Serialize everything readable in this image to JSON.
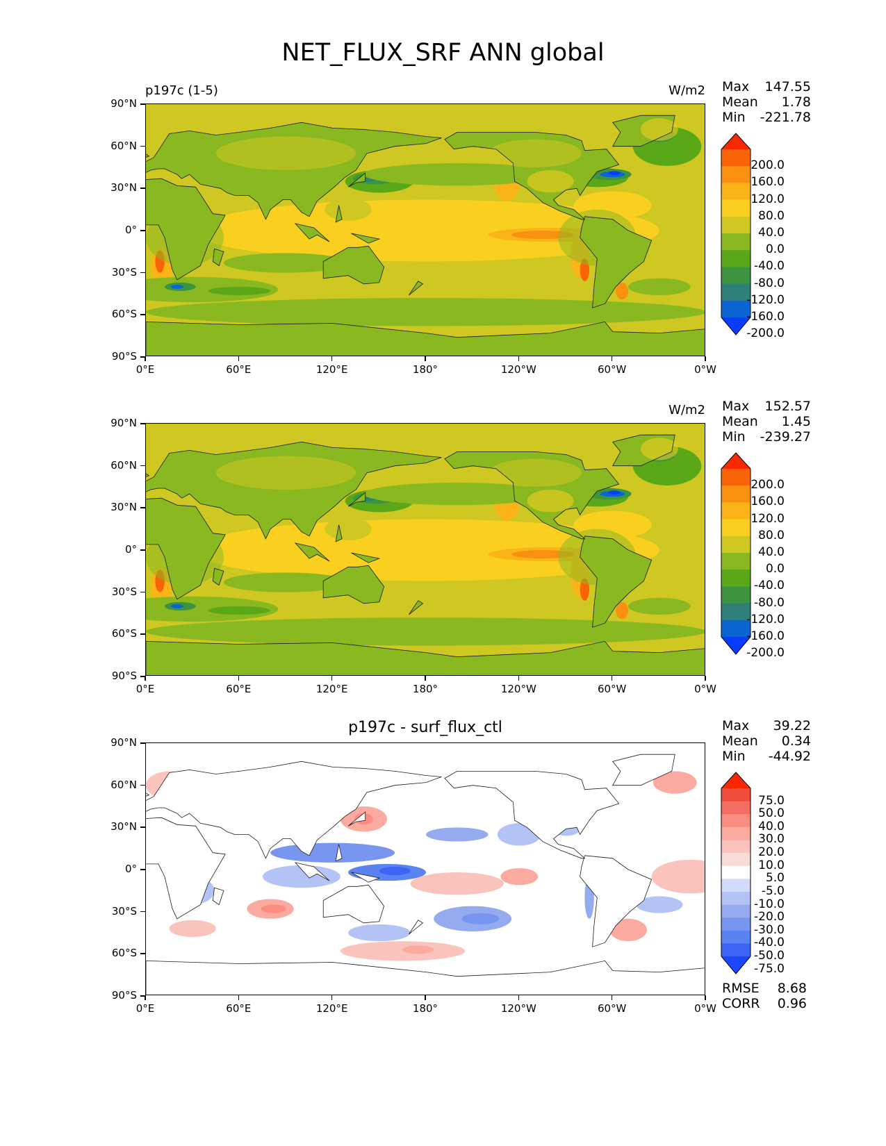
{
  "title": "NET_FLUX_SRF ANN global",
  "axes": {
    "lat_labels": [
      "90°N",
      "60°N",
      "30°N",
      "0°",
      "30°S",
      "60°S",
      "90°S"
    ],
    "lon_labels": [
      "0°E",
      "60°E",
      "120°E",
      "180°",
      "120°W",
      "60°W",
      "0°W"
    ]
  },
  "colors": {
    "full": [
      "#0a3cff",
      "#0a64d2",
      "#2e7f7a",
      "#3c9440",
      "#5aa818",
      "#8ab820",
      "#cfc722",
      "#fad020",
      "#fab418",
      "#fa9010",
      "#fa6408",
      "#fa2800"
    ],
    "diff": [
      "#1e46ff",
      "#3c64f5",
      "#5a82f0",
      "#7896f0",
      "#96aaf0",
      "#b4c3f5",
      "#d2dcfa",
      "#ffffff",
      "#fadcd7",
      "#fac3bb",
      "#faaa9f",
      "#fa8c82",
      "#f56e64",
      "#f04b3c",
      "#fa2800"
    ]
  },
  "panels": [
    {
      "left_label": "p197c (1-5)",
      "units": "W/m2",
      "center_title": "",
      "stats": {
        "max_label": "Max",
        "max": "147.55",
        "mean_label": "Mean",
        "mean": "1.78",
        "min_label": "Min",
        "min": "-221.78"
      },
      "colorbar_labels": [
        "200.0",
        "160.0",
        "120.0",
        "80.0",
        "40.0",
        "0.0",
        "-40.0",
        "-80.0",
        "-120.0",
        "-160.0",
        "-200.0"
      ]
    },
    {
      "left_label": "",
      "units": "W/m2",
      "center_title": "",
      "stats": {
        "max_label": "Max",
        "max": "152.57",
        "mean_label": "Mean",
        "mean": "1.45",
        "min_label": "Min",
        "min": "-239.27"
      },
      "colorbar_labels": [
        "200.0",
        "160.0",
        "120.0",
        "80.0",
        "40.0",
        "0.0",
        "-40.0",
        "-80.0",
        "-120.0",
        "-160.0",
        "-200.0"
      ]
    },
    {
      "left_label": "",
      "units": "",
      "center_title": "p197c - surf_flux_ctl",
      "stats": {
        "max_label": "Max",
        "max": "39.22",
        "mean_label": "Mean",
        "mean": "0.34",
        "min_label": "Min",
        "min": "-44.92"
      },
      "colorbar_labels": [
        "75.0",
        "50.0",
        "40.0",
        "30.0",
        "20.0",
        "10.0",
        "5.0",
        "-5.0",
        "-10.0",
        "-20.0",
        "-30.0",
        "-40.0",
        "-50.0",
        "-75.0"
      ],
      "extra_stats": {
        "rmse_label": "RMSE",
        "rmse": "8.68",
        "corr_label": "CORR",
        "corr": "0.96"
      }
    }
  ],
  "chart_data": [
    {
      "type": "heatmap",
      "title": "NET_FLUX_SRF ANN global",
      "panel_label": "p197c (1-5)",
      "units": "W/m2",
      "x_range": [
        0,
        360
      ],
      "y_range": [
        -90,
        90
      ],
      "x_ticks": [
        0,
        60,
        120,
        180,
        240,
        300,
        360
      ],
      "y_ticks": [
        90,
        60,
        30,
        0,
        -30,
        -60,
        -90
      ],
      "color_levels": [
        -200,
        -160,
        -120,
        -80,
        -40,
        0,
        40,
        80,
        120,
        160,
        200
      ],
      "stats": {
        "max": 147.55,
        "mean": 1.78,
        "min": -221.78
      }
    },
    {
      "type": "heatmap",
      "units": "W/m2",
      "x_range": [
        0,
        360
      ],
      "y_range": [
        -90,
        90
      ],
      "color_levels": [
        -200,
        -160,
        -120,
        -80,
        -40,
        0,
        40,
        80,
        120,
        160,
        200
      ],
      "stats": {
        "max": 152.57,
        "mean": 1.45,
        "min": -239.27
      }
    },
    {
      "type": "heatmap",
      "title": "p197c - surf_flux_ctl",
      "x_range": [
        0,
        360
      ],
      "y_range": [
        -90,
        90
      ],
      "color_levels": [
        -75,
        -50,
        -40,
        -30,
        -20,
        -10,
        -5,
        5,
        10,
        20,
        30,
        40,
        50,
        75
      ],
      "stats": {
        "max": 39.22,
        "mean": 0.34,
        "min": -44.92,
        "rmse": 8.68,
        "corr": 0.96
      }
    }
  ]
}
